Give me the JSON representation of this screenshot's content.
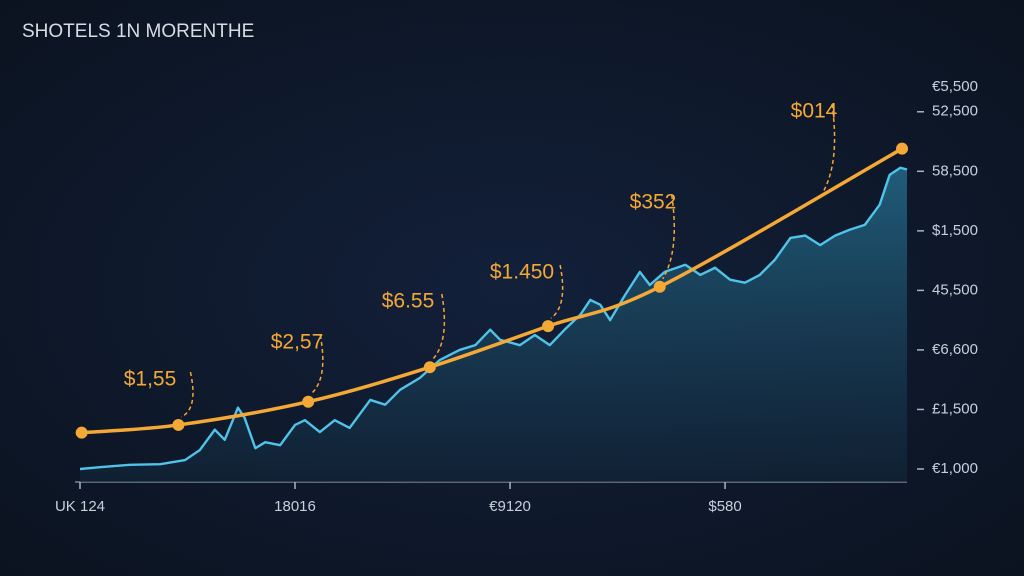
{
  "chart_data": {
    "type": "line",
    "title": "SHOTELS 1N MORENTHE",
    "y_label": "€5,500",
    "x": [
      0,
      0.2,
      11.9,
      27.6,
      42.3,
      56.6,
      70.1,
      99.4
    ],
    "xlim": [
      0,
      100
    ],
    "xticks": [
      {
        "value": 0,
        "label": "UK 124"
      },
      {
        "value": 26,
        "label": "18016"
      },
      {
        "value": 52,
        "label": "€9120"
      },
      {
        "value": 78,
        "label": "$580"
      }
    ],
    "ylim": [
      0,
      6.5
    ],
    "yticks": [
      {
        "value": 0,
        "label": "€1,000"
      },
      {
        "value": 1,
        "label": "£1,500"
      },
      {
        "value": 2,
        "label": "€6,600"
      },
      {
        "value": 3,
        "label": "45,500"
      },
      {
        "value": 4,
        "label": "$1,500"
      },
      {
        "value": 5,
        "label": "58,500"
      },
      {
        "value": 6,
        "label": "52,500"
      }
    ],
    "series": [
      {
        "color": "#4fc3e8",
        "x": [
          0,
          2.4,
          6.0,
          9.7,
          12.7,
          14.5,
          16.3,
          17.5,
          19.1,
          19.9,
          21.2,
          22.4,
          24.2,
          26.0,
          27.2,
          29.0,
          30.8,
          32.6,
          35.1,
          36.9,
          38.7,
          41.1,
          43.5,
          45.9,
          47.8,
          49.6,
          50.8,
          53.2,
          55.0,
          56.8,
          58.6,
          60.5,
          61.7,
          62.9,
          64.1,
          65.9,
          67.7,
          68.9,
          70.7,
          73.2,
          75.0,
          76.8,
          78.6,
          80.4,
          82.2,
          84.0,
          85.9,
          87.7,
          89.5,
          91.3,
          93.1,
          94.9,
          96.7,
          97.9,
          99.2,
          100
        ],
        "values": [
          0,
          0.03,
          0.07,
          0.08,
          0.15,
          0.32,
          0.66,
          0.49,
          1.03,
          0.86,
          0.35,
          0.45,
          0.4,
          0.74,
          0.82,
          0.62,
          0.82,
          0.69,
          1.16,
          1.08,
          1.33,
          1.53,
          1.83,
          2.0,
          2.08,
          2.34,
          2.17,
          2.08,
          2.25,
          2.08,
          2.34,
          2.59,
          2.84,
          2.76,
          2.5,
          2.92,
          3.31,
          3.09,
          3.31,
          3.43,
          3.26,
          3.38,
          3.18,
          3.13,
          3.26,
          3.51,
          3.88,
          3.92,
          3.76,
          3.92,
          4.02,
          4.1,
          4.44,
          4.94,
          5.06,
          5.03
        ]
      },
      {
        "color": "#f4a835",
        "x": [
          0.2,
          11.9,
          27.6,
          42.3,
          56.6,
          70.1,
          99.4
        ],
        "values": [
          0.61,
          0.74,
          1.13,
          1.71,
          2.4,
          3.06,
          5.38
        ]
      }
    ],
    "annotations": [
      "$1,55",
      "$2,57",
      "$6.55",
      "$1.450",
      "$352",
      "$014"
    ]
  }
}
